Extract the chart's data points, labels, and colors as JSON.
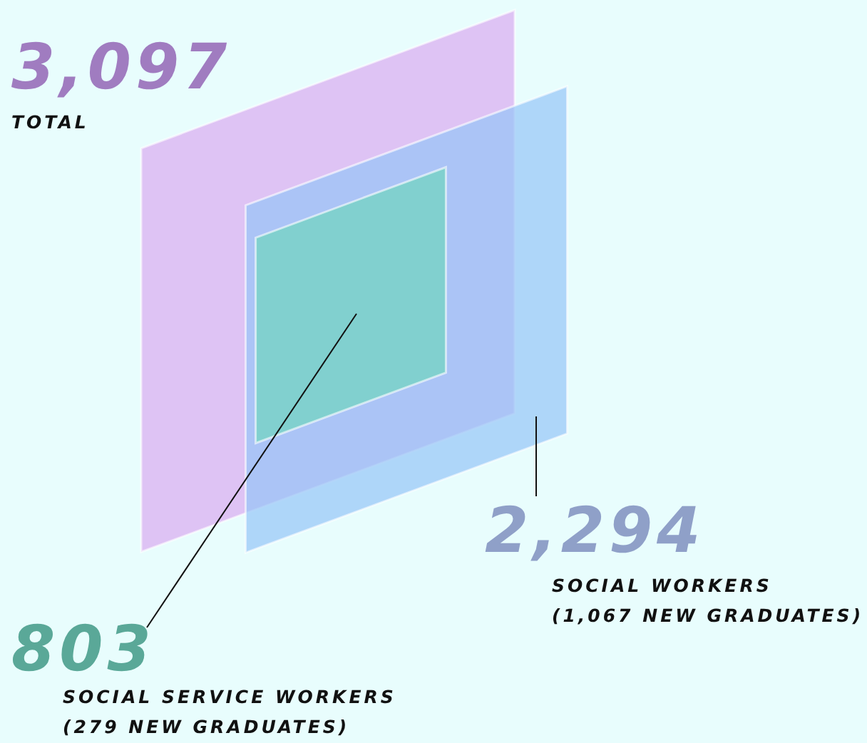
{
  "chart_data": {
    "type": "other",
    "categories": [
      "TOTAL",
      "SOCIAL WORKERS",
      "SOCIAL SERVICE WORKERS"
    ],
    "values": [
      3097,
      2294,
      803
    ],
    "value_labels": [
      "3,097",
      "2,294",
      "803"
    ],
    "colors": [
      "#a07cc0",
      "#8fa0c8",
      "#5aa898"
    ],
    "annotations": [
      "(1,067 NEW GRADUATES)",
      "(279 NEW GRADUATES)"
    ]
  }
}
